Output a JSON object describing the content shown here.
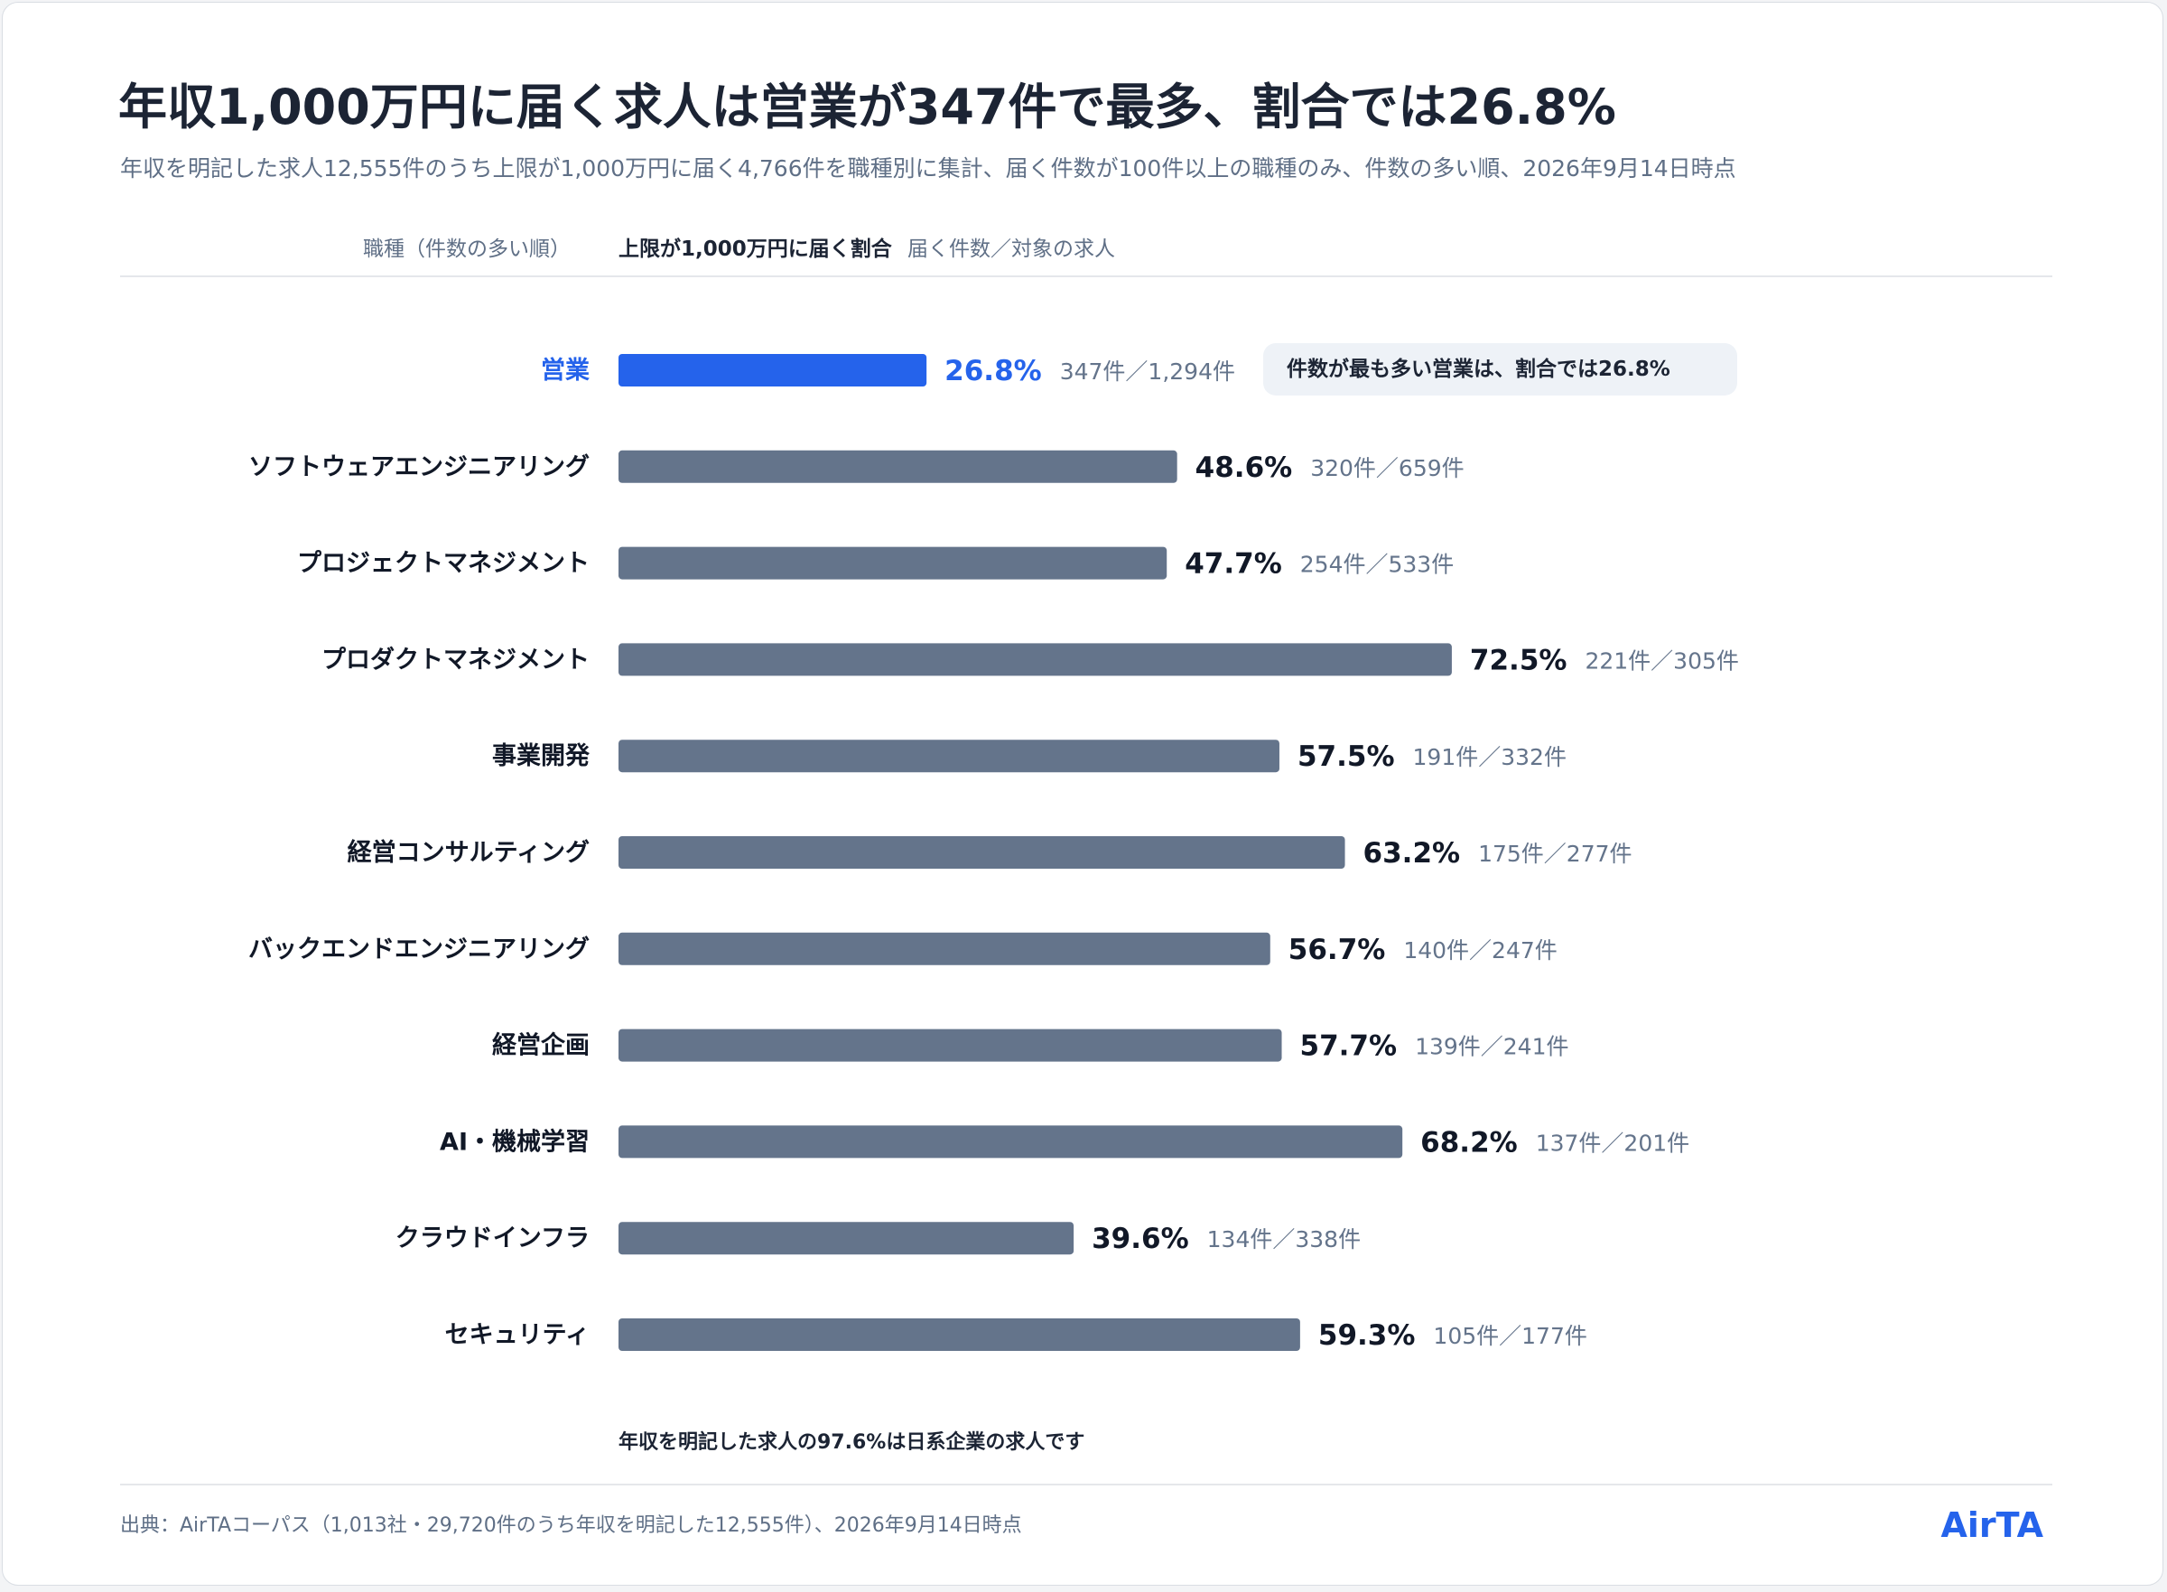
{
  "title": "年収1,000万円に届く求人は営業が347件で最多、割合では26.8%",
  "subtitle": "年収を明記した求人12,555件のうち上限が1,000万円に届く4,766件を職種別に集計、届く件数が100件以上の職種のみ、件数の多い順、2026年9月14日時点",
  "header": {
    "category": "職種（件数の多い順）",
    "ratio": "上限が1,000万円に届く割合",
    "count": "届く件数／対象の求人"
  },
  "callout": "件数が最も多い営業は、割合では26.8%",
  "footnote": "年収を明記した求人の97.6%は日系企業の求人です",
  "source": "出典：AirTAコーパス（1,013社・29,720件のうち年収を明記した12,555件）、2026年9月14日時点",
  "brand": "AirTA",
  "colors": {
    "highlight": "#2563eb",
    "bar": "#64748b",
    "label": "#111827",
    "muted": "#64748b",
    "rule": "#e5e7eb"
  },
  "chart_data": {
    "type": "bar",
    "orientation": "horizontal",
    "highlight_index": 0,
    "xlim": [
      0,
      100
    ],
    "grid": false,
    "categories": [
      "営業",
      "ソフトウェアエンジニアリング",
      "プロジェクトマネジメント",
      "プロダクトマネジメント",
      "事業開発",
      "経営コンサルティング",
      "バックエンドエンジニアリング",
      "経営企画",
      "AI・機械学習",
      "クラウドインフラ",
      "セキュリティ"
    ],
    "values": [
      26.8,
      48.6,
      47.7,
      72.5,
      57.5,
      63.2,
      56.7,
      57.7,
      68.2,
      39.6,
      59.3
    ],
    "value_labels": [
      "26.8%",
      "48.6%",
      "47.7%",
      "72.5%",
      "57.5%",
      "63.2%",
      "56.7%",
      "57.7%",
      "68.2%",
      "39.6%",
      "59.3%"
    ],
    "count_labels": [
      "347件／1,294件",
      "320件／659件",
      "254件／533件",
      "221件／305件",
      "191件／332件",
      "175件／277件",
      "140件／247件",
      "139件／241件",
      "137件／201件",
      "134件／338件",
      "105件／177件"
    ]
  }
}
